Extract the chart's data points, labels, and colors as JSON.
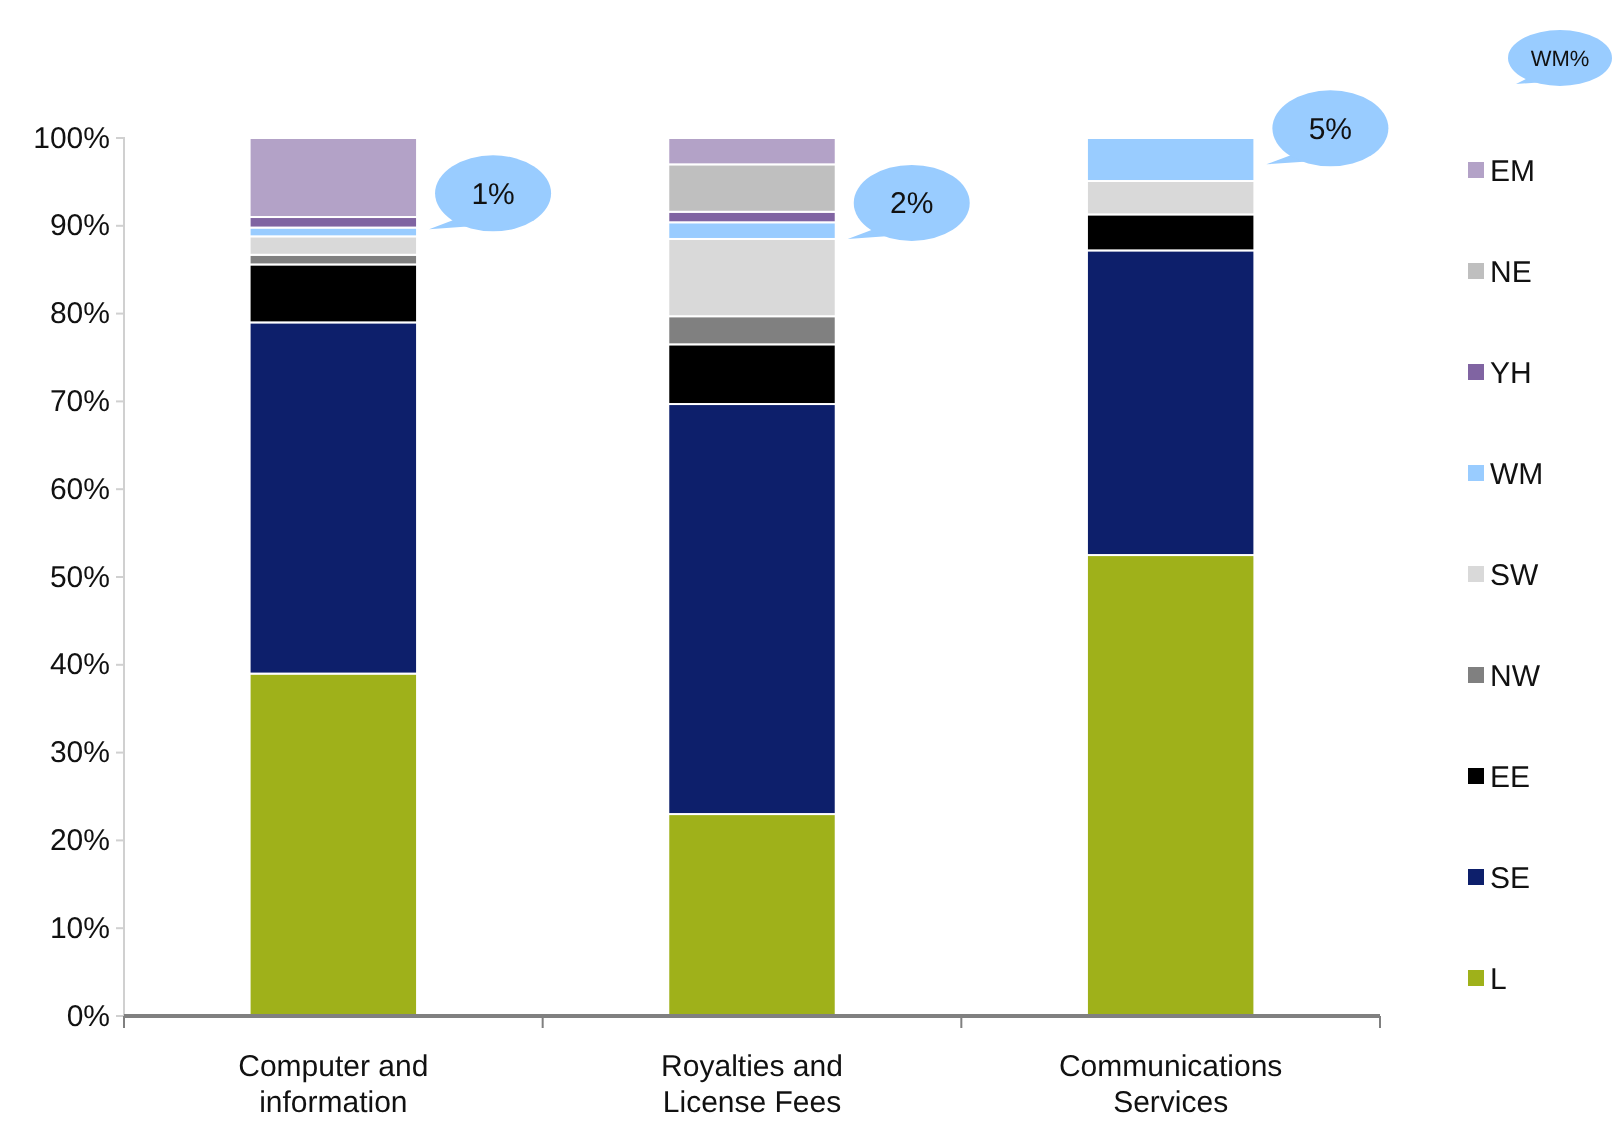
{
  "chart_data": {
    "type": "bar",
    "stacked": true,
    "categories": [
      "Computer and information",
      "Royalties and License Fees",
      "Communications Services"
    ],
    "series": [
      {
        "name": "L",
        "color": "#9fb11a",
        "values": [
          39,
          23,
          52.5
        ]
      },
      {
        "name": "SE",
        "color": "#0d1f6b",
        "values": [
          40,
          46.7,
          34.7
        ]
      },
      {
        "name": "EE",
        "color": "#000000",
        "values": [
          6.6,
          6.8,
          4.1
        ]
      },
      {
        "name": "NW",
        "color": "#808080",
        "values": [
          1.1,
          3.2,
          0
        ]
      },
      {
        "name": "SW",
        "color": "#d9d9d9",
        "values": [
          2.1,
          8.8,
          3.8
        ]
      },
      {
        "name": "WM",
        "color": "#99ccff",
        "values": [
          1,
          1.9,
          4.9
        ]
      },
      {
        "name": "YH",
        "color": "#8064a2",
        "values": [
          1.2,
          1.2,
          0
        ]
      },
      {
        "name": "NE",
        "color": "#bfbfbf",
        "values": [
          0,
          5.4,
          0
        ]
      },
      {
        "name": "EM",
        "color": "#b3a2c7",
        "values": [
          9,
          3,
          0
        ]
      }
    ],
    "ylim": [
      0,
      100
    ],
    "yticks": [
      {
        "value": 0,
        "label": "0%"
      },
      {
        "value": 10,
        "label": "10%"
      },
      {
        "value": 20,
        "label": "20%"
      },
      {
        "value": 30,
        "label": "30%"
      },
      {
        "value": 40,
        "label": "40%"
      },
      {
        "value": 50,
        "label": "50%"
      },
      {
        "value": 60,
        "label": "60%"
      },
      {
        "value": 70,
        "label": "70%"
      },
      {
        "value": 80,
        "label": "80%"
      },
      {
        "value": 90,
        "label": "90%"
      },
      {
        "value": 100,
        "label": "100%"
      }
    ],
    "grid": false,
    "legend": "right",
    "annotations": [
      "1%",
      "2%",
      "5%",
      "WM%"
    ]
  }
}
